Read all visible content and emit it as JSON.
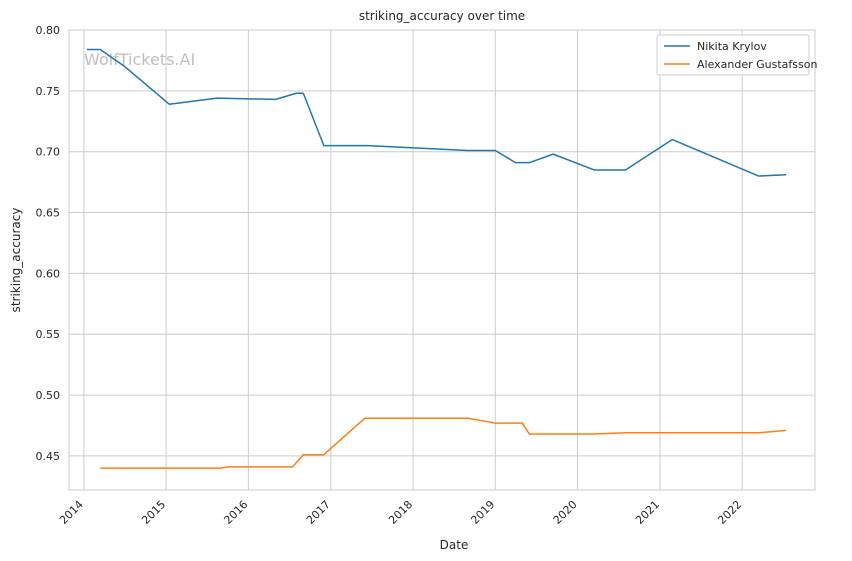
{
  "chart_data": {
    "type": "line",
    "title": "striking_accuracy over time",
    "xlabel": "Date",
    "ylabel": "striking_accuracy",
    "watermark": "WolfTickets.AI",
    "x_ticks": [
      "2014",
      "2015",
      "2016",
      "2017",
      "2018",
      "2019",
      "2020",
      "2021",
      "2022"
    ],
    "y_ticks": [
      "0.45",
      "0.50",
      "0.55",
      "0.60",
      "0.65",
      "0.70",
      "0.75",
      "0.80"
    ],
    "xlim": [
      "2013-10-27",
      "2022-11-20"
    ],
    "ylim": [
      0.422,
      0.8
    ],
    "grid": true,
    "legend_position": "top-right",
    "series": [
      {
        "name": "Nikita Krylov",
        "color": "#1f77b4",
        "points": [
          {
            "x": "2014-01-15",
            "y": 0.784
          },
          {
            "x": "2014-03-15",
            "y": 0.784
          },
          {
            "x": "2014-07-01",
            "y": 0.77
          },
          {
            "x": "2015-01-15",
            "y": 0.739
          },
          {
            "x": "2015-08-15",
            "y": 0.744
          },
          {
            "x": "2016-05-01",
            "y": 0.743
          },
          {
            "x": "2016-08-01",
            "y": 0.748
          },
          {
            "x": "2016-09-01",
            "y": 0.748
          },
          {
            "x": "2016-12-01",
            "y": 0.705
          },
          {
            "x": "2017-06-15",
            "y": 0.705
          },
          {
            "x": "2018-01-15",
            "y": 0.703
          },
          {
            "x": "2018-09-01",
            "y": 0.701
          },
          {
            "x": "2019-01-01",
            "y": 0.701
          },
          {
            "x": "2019-04-01",
            "y": 0.691
          },
          {
            "x": "2019-06-01",
            "y": 0.691
          },
          {
            "x": "2019-09-15",
            "y": 0.698
          },
          {
            "x": "2020-03-15",
            "y": 0.685
          },
          {
            "x": "2020-08-01",
            "y": 0.685
          },
          {
            "x": "2021-02-25",
            "y": 0.71
          },
          {
            "x": "2022-03-15",
            "y": 0.68
          },
          {
            "x": "2022-07-15",
            "y": 0.681
          }
        ]
      },
      {
        "name": "Alexander Gustafsson",
        "color": "#ff7f0e",
        "points": [
          {
            "x": "2014-03-15",
            "y": 0.44
          },
          {
            "x": "2015-09-01",
            "y": 0.44
          },
          {
            "x": "2015-10-01",
            "y": 0.441
          },
          {
            "x": "2016-07-15",
            "y": 0.441
          },
          {
            "x": "2016-09-01",
            "y": 0.451
          },
          {
            "x": "2016-12-01",
            "y": 0.451
          },
          {
            "x": "2017-06-01",
            "y": 0.481
          },
          {
            "x": "2018-09-01",
            "y": 0.481
          },
          {
            "x": "2019-01-01",
            "y": 0.477
          },
          {
            "x": "2019-05-01",
            "y": 0.477
          },
          {
            "x": "2019-06-01",
            "y": 0.468
          },
          {
            "x": "2020-03-15",
            "y": 0.468
          },
          {
            "x": "2020-08-01",
            "y": 0.469
          },
          {
            "x": "2022-03-15",
            "y": 0.469
          },
          {
            "x": "2022-07-15",
            "y": 0.471
          }
        ]
      }
    ]
  }
}
